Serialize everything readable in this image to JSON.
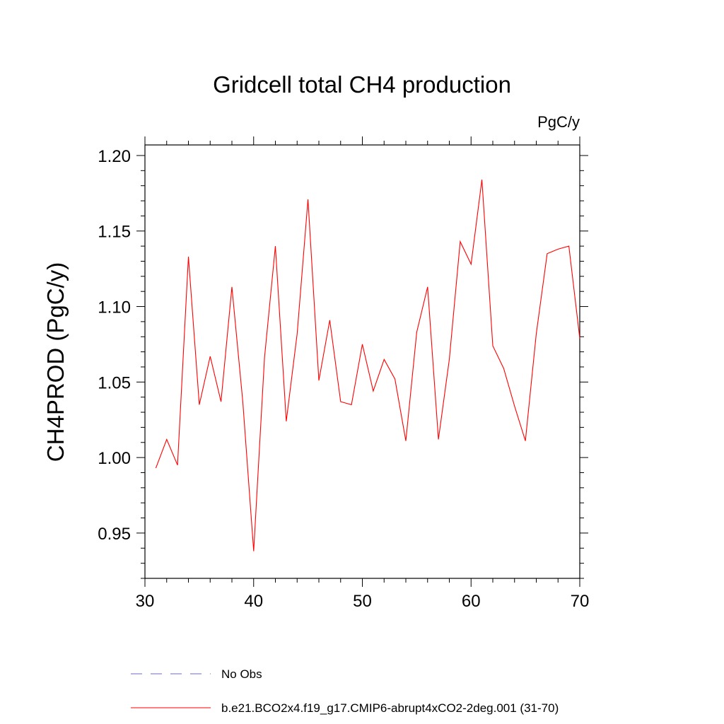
{
  "chart_data": {
    "type": "line",
    "title": "Gridcell total CH4 production",
    "units_label": "PgC/y",
    "ylabel": "CH4PROD  (PgC/y)",
    "xlabel": "",
    "xlim": [
      30,
      70
    ],
    "ylim": [
      0.92,
      1.207
    ],
    "x_ticks": [
      30,
      40,
      50,
      60,
      70
    ],
    "y_ticks": [
      0.95,
      1.0,
      1.05,
      1.1,
      1.15,
      1.2
    ],
    "y_tick_labels": [
      "0.95",
      "1.00",
      "1.05",
      "1.10",
      "1.15",
      "1.20"
    ],
    "x_tick_labels": [
      "30",
      "40",
      "50",
      "60",
      "70"
    ],
    "grid": false,
    "legend_placement": "bottom",
    "series": [
      {
        "name": "No Obs",
        "color": "#6b6bbf",
        "style": "dashed",
        "x": [],
        "values": []
      },
      {
        "name": "b.e21.BCO2x4.f19_g17.CMIP6-abrupt4xCO2-2deg.001 (31-70)",
        "color": "#ff0000",
        "style": "solid",
        "x": [
          31,
          32,
          33,
          34,
          35,
          36,
          37,
          38,
          39,
          40,
          41,
          42,
          43,
          44,
          45,
          46,
          47,
          48,
          49,
          50,
          51,
          52,
          53,
          54,
          55,
          56,
          57,
          58,
          59,
          60,
          61,
          62,
          63,
          64,
          65,
          66,
          67,
          68,
          69,
          70
        ],
        "values": [
          0.993,
          1.012,
          0.995,
          1.133,
          1.035,
          1.067,
          1.037,
          1.113,
          1.037,
          0.938,
          1.066,
          1.14,
          1.024,
          1.082,
          1.171,
          1.051,
          1.091,
          1.037,
          1.035,
          1.075,
          1.044,
          1.065,
          1.052,
          1.011,
          1.083,
          1.113,
          1.012,
          1.065,
          1.143,
          1.128,
          1.184,
          1.074,
          1.059,
          1.034,
          1.011,
          1.082,
          1.135,
          1.138,
          1.14,
          1.079
        ]
      }
    ]
  }
}
